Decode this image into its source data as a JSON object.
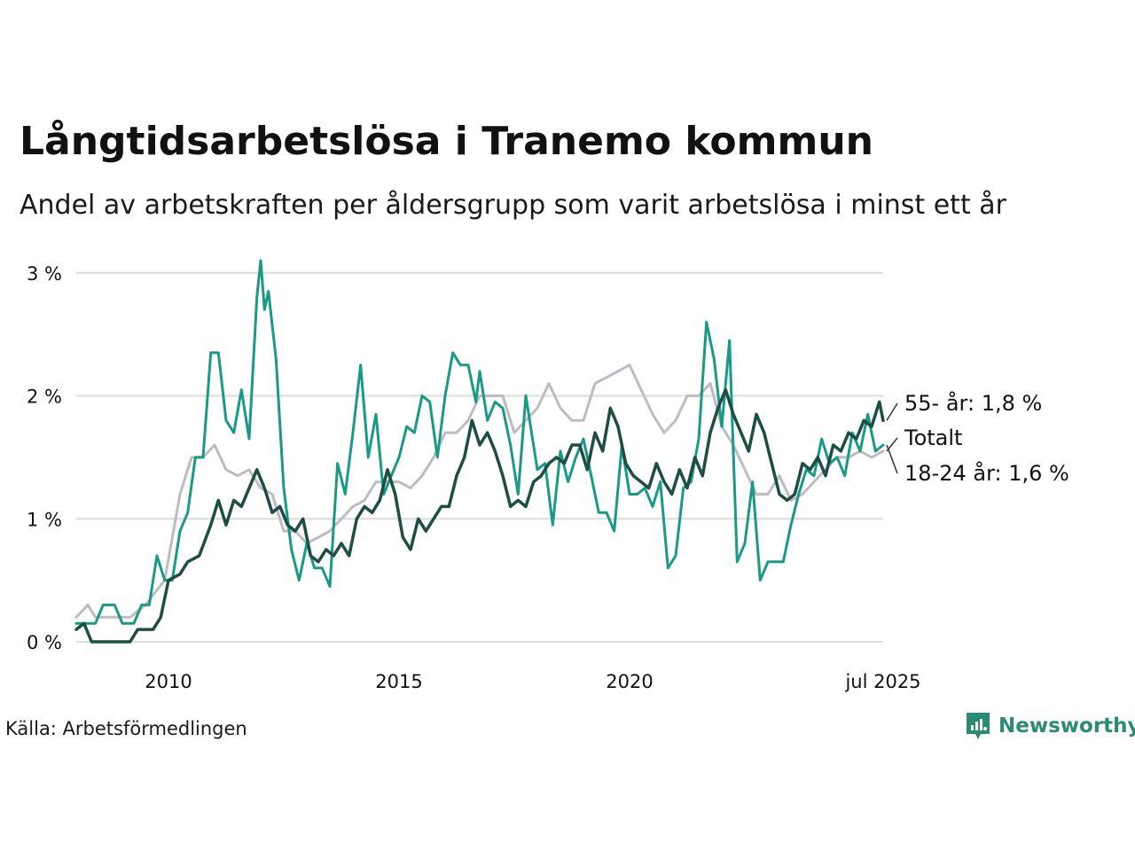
{
  "title": "Långtidsarbetslösa i Tranemo kommun",
  "subtitle": "Andel av arbetskraften per åldersgrupp som varit arbetslösa i minst ett år",
  "source": "Källa: Arbetsförmedlingen",
  "brand": {
    "name": "Newsworthy",
    "icon": "newsworthy-logo-icon",
    "color": "#2a8a72"
  },
  "chart_data": {
    "type": "line",
    "x_range": [
      "2008-01",
      "2025-07"
    ],
    "ylim": [
      0,
      3.2
    ],
    "y_ticks": [
      {
        "value": 0,
        "label": "0 %"
      },
      {
        "value": 1,
        "label": "1 %"
      },
      {
        "value": 2,
        "label": "2 %"
      },
      {
        "value": 3,
        "label": "3 %"
      }
    ],
    "x_ticks": [
      {
        "date": "2010-01",
        "label": "2010"
      },
      {
        "date": "2015-01",
        "label": "2015"
      },
      {
        "date": "2020-01",
        "label": "2020"
      },
      {
        "date": "2025-07",
        "label": "jul 2025"
      }
    ],
    "grid": true,
    "end_labels": [
      {
        "series": "55-",
        "text": "55- år: 1,8 %"
      },
      {
        "series": "Totalt",
        "text": "Totalt"
      },
      {
        "series": "18-24",
        "text": "18-24 år: 1,6 %"
      }
    ],
    "series": [
      {
        "name": "Totalt",
        "color": "#bdbcc4",
        "width": 3,
        "points": [
          [
            "2008-01",
            0.2
          ],
          [
            "2008-04",
            0.3
          ],
          [
            "2008-06",
            0.2
          ],
          [
            "2009-03",
            0.2
          ],
          [
            "2009-07",
            0.3
          ],
          [
            "2009-12",
            0.5
          ],
          [
            "2010-04",
            1.2
          ],
          [
            "2010-07",
            1.5
          ],
          [
            "2010-10",
            1.5
          ],
          [
            "2011-01",
            1.6
          ],
          [
            "2011-04",
            1.4
          ],
          [
            "2011-07",
            1.35
          ],
          [
            "2011-10",
            1.4
          ],
          [
            "2012-01",
            1.25
          ],
          [
            "2012-04",
            1.2
          ],
          [
            "2012-07",
            0.9
          ],
          [
            "2012-10",
            0.9
          ],
          [
            "2013-01",
            0.8
          ],
          [
            "2013-04",
            0.85
          ],
          [
            "2013-07",
            0.9
          ],
          [
            "2013-10",
            1.0
          ],
          [
            "2014-01",
            1.1
          ],
          [
            "2014-04",
            1.15
          ],
          [
            "2014-07",
            1.3
          ],
          [
            "2014-10",
            1.3
          ],
          [
            "2015-01",
            1.3
          ],
          [
            "2015-04",
            1.25
          ],
          [
            "2015-07",
            1.35
          ],
          [
            "2015-10",
            1.5
          ],
          [
            "2016-01",
            1.7
          ],
          [
            "2016-04",
            1.7
          ],
          [
            "2016-07",
            1.8
          ],
          [
            "2016-10",
            2.0
          ],
          [
            "2017-01",
            2.0
          ],
          [
            "2017-04",
            2.0
          ],
          [
            "2017-07",
            1.7
          ],
          [
            "2017-10",
            1.8
          ],
          [
            "2018-01",
            1.9
          ],
          [
            "2018-04",
            2.1
          ],
          [
            "2018-07",
            1.9
          ],
          [
            "2018-10",
            1.8
          ],
          [
            "2019-01",
            1.8
          ],
          [
            "2019-04",
            2.1
          ],
          [
            "2019-07",
            2.15
          ],
          [
            "2019-10",
            2.2
          ],
          [
            "2020-01",
            2.25
          ],
          [
            "2020-04",
            2.05
          ],
          [
            "2020-07",
            1.85
          ],
          [
            "2020-10",
            1.7
          ],
          [
            "2021-01",
            1.8
          ],
          [
            "2021-04",
            2.0
          ],
          [
            "2021-07",
            2.0
          ],
          [
            "2021-10",
            2.1
          ],
          [
            "2022-01",
            1.75
          ],
          [
            "2022-04",
            1.6
          ],
          [
            "2022-07",
            1.4
          ],
          [
            "2022-10",
            1.2
          ],
          [
            "2023-01",
            1.2
          ],
          [
            "2023-04",
            1.35
          ],
          [
            "2023-07",
            1.15
          ],
          [
            "2023-10",
            1.2
          ],
          [
            "2024-01",
            1.3
          ],
          [
            "2024-04",
            1.4
          ],
          [
            "2024-07",
            1.5
          ],
          [
            "2024-10",
            1.5
          ],
          [
            "2025-01",
            1.55
          ],
          [
            "2025-04",
            1.5
          ],
          [
            "2025-07",
            1.55
          ]
        ]
      },
      {
        "name": "18-24",
        "color": "#1a9a85",
        "width": 3,
        "points": [
          [
            "2008-01",
            0.15
          ],
          [
            "2008-03",
            0.15
          ],
          [
            "2008-06",
            0.15
          ],
          [
            "2008-08",
            0.3
          ],
          [
            "2008-11",
            0.3
          ],
          [
            "2009-01",
            0.15
          ],
          [
            "2009-04",
            0.15
          ],
          [
            "2009-06",
            0.3
          ],
          [
            "2009-08",
            0.3
          ],
          [
            "2009-10",
            0.7
          ],
          [
            "2009-12",
            0.5
          ],
          [
            "2010-02",
            0.5
          ],
          [
            "2010-04",
            0.9
          ],
          [
            "2010-06",
            1.05
          ],
          [
            "2010-08",
            1.5
          ],
          [
            "2010-10",
            1.5
          ],
          [
            "2010-12",
            2.35
          ],
          [
            "2011-02",
            2.35
          ],
          [
            "2011-04",
            1.8
          ],
          [
            "2011-06",
            1.7
          ],
          [
            "2011-08",
            2.05
          ],
          [
            "2011-10",
            1.65
          ],
          [
            "2011-12",
            2.8
          ],
          [
            "2012-01",
            3.1
          ],
          [
            "2012-02",
            2.7
          ],
          [
            "2012-03",
            2.85
          ],
          [
            "2012-05",
            2.3
          ],
          [
            "2012-07",
            1.25
          ],
          [
            "2012-09",
            0.75
          ],
          [
            "2012-11",
            0.5
          ],
          [
            "2013-01",
            0.8
          ],
          [
            "2013-03",
            0.6
          ],
          [
            "2013-05",
            0.6
          ],
          [
            "2013-07",
            0.45
          ],
          [
            "2013-09",
            1.45
          ],
          [
            "2013-11",
            1.2
          ],
          [
            "2014-01",
            1.7
          ],
          [
            "2014-03",
            2.25
          ],
          [
            "2014-05",
            1.5
          ],
          [
            "2014-07",
            1.85
          ],
          [
            "2014-09",
            1.2
          ],
          [
            "2014-11",
            1.35
          ],
          [
            "2015-01",
            1.5
          ],
          [
            "2015-03",
            1.75
          ],
          [
            "2015-05",
            1.7
          ],
          [
            "2015-07",
            2.0
          ],
          [
            "2015-09",
            1.95
          ],
          [
            "2015-11",
            1.5
          ],
          [
            "2016-01",
            2.0
          ],
          [
            "2016-03",
            2.35
          ],
          [
            "2016-05",
            2.25
          ],
          [
            "2016-07",
            2.25
          ],
          [
            "2016-09",
            1.95
          ],
          [
            "2016-10",
            2.2
          ],
          [
            "2016-12",
            1.8
          ],
          [
            "2017-02",
            1.95
          ],
          [
            "2017-04",
            1.9
          ],
          [
            "2017-06",
            1.6
          ],
          [
            "2017-08",
            1.2
          ],
          [
            "2017-10",
            2.0
          ],
          [
            "2018-01",
            1.4
          ],
          [
            "2018-03",
            1.45
          ],
          [
            "2018-05",
            0.95
          ],
          [
            "2018-07",
            1.55
          ],
          [
            "2018-09",
            1.3
          ],
          [
            "2018-11",
            1.5
          ],
          [
            "2019-01",
            1.65
          ],
          [
            "2019-03",
            1.35
          ],
          [
            "2019-05",
            1.05
          ],
          [
            "2019-07",
            1.05
          ],
          [
            "2019-09",
            0.9
          ],
          [
            "2019-11",
            1.6
          ],
          [
            "2020-01",
            1.2
          ],
          [
            "2020-03",
            1.2
          ],
          [
            "2020-05",
            1.25
          ],
          [
            "2020-07",
            1.1
          ],
          [
            "2020-09",
            1.3
          ],
          [
            "2020-11",
            0.6
          ],
          [
            "2021-01",
            0.7
          ],
          [
            "2021-03",
            1.25
          ],
          [
            "2021-05",
            1.3
          ],
          [
            "2021-07",
            1.65
          ],
          [
            "2021-09",
            2.6
          ],
          [
            "2021-11",
            2.3
          ],
          [
            "2022-01",
            1.75
          ],
          [
            "2022-03",
            2.45
          ],
          [
            "2022-05",
            0.65
          ],
          [
            "2022-07",
            0.8
          ],
          [
            "2022-09",
            1.3
          ],
          [
            "2022-11",
            0.5
          ],
          [
            "2023-01",
            0.65
          ],
          [
            "2023-03",
            0.65
          ],
          [
            "2023-05",
            0.65
          ],
          [
            "2023-07",
            0.95
          ],
          [
            "2023-09",
            1.2
          ],
          [
            "2023-11",
            1.4
          ],
          [
            "2024-01",
            1.35
          ],
          [
            "2024-03",
            1.65
          ],
          [
            "2024-05",
            1.45
          ],
          [
            "2024-07",
            1.5
          ],
          [
            "2024-09",
            1.35
          ],
          [
            "2024-11",
            1.7
          ],
          [
            "2025-01",
            1.55
          ],
          [
            "2025-03",
            1.85
          ],
          [
            "2025-05",
            1.55
          ],
          [
            "2025-07",
            1.6
          ]
        ]
      },
      {
        "name": "55-",
        "color": "#1e4d44",
        "width": 3.5,
        "points": [
          [
            "2008-01",
            0.1
          ],
          [
            "2008-03",
            0.15
          ],
          [
            "2008-05",
            0.0
          ],
          [
            "2008-09",
            0.0
          ],
          [
            "2009-03",
            0.0
          ],
          [
            "2009-05",
            0.1
          ],
          [
            "2009-09",
            0.1
          ],
          [
            "2009-11",
            0.2
          ],
          [
            "2010-01",
            0.5
          ],
          [
            "2010-04",
            0.55
          ],
          [
            "2010-06",
            0.65
          ],
          [
            "2010-09",
            0.7
          ],
          [
            "2010-12",
            0.95
          ],
          [
            "2011-02",
            1.15
          ],
          [
            "2011-04",
            0.95
          ],
          [
            "2011-06",
            1.15
          ],
          [
            "2011-08",
            1.1
          ],
          [
            "2011-10",
            1.25
          ],
          [
            "2011-12",
            1.4
          ],
          [
            "2012-02",
            1.25
          ],
          [
            "2012-04",
            1.05
          ],
          [
            "2012-06",
            1.1
          ],
          [
            "2012-08",
            0.95
          ],
          [
            "2012-10",
            0.9
          ],
          [
            "2012-12",
            1.0
          ],
          [
            "2013-02",
            0.7
          ],
          [
            "2013-04",
            0.65
          ],
          [
            "2013-06",
            0.75
          ],
          [
            "2013-08",
            0.7
          ],
          [
            "2013-10",
            0.8
          ],
          [
            "2013-12",
            0.7
          ],
          [
            "2014-02",
            1.0
          ],
          [
            "2014-04",
            1.1
          ],
          [
            "2014-06",
            1.05
          ],
          [
            "2014-08",
            1.15
          ],
          [
            "2014-10",
            1.4
          ],
          [
            "2014-12",
            1.2
          ],
          [
            "2015-02",
            0.85
          ],
          [
            "2015-04",
            0.75
          ],
          [
            "2015-06",
            1.0
          ],
          [
            "2015-08",
            0.9
          ],
          [
            "2015-10",
            1.0
          ],
          [
            "2015-12",
            1.1
          ],
          [
            "2016-02",
            1.1
          ],
          [
            "2016-04",
            1.35
          ],
          [
            "2016-06",
            1.5
          ],
          [
            "2016-08",
            1.8
          ],
          [
            "2016-10",
            1.6
          ],
          [
            "2016-12",
            1.7
          ],
          [
            "2017-02",
            1.55
          ],
          [
            "2017-04",
            1.35
          ],
          [
            "2017-06",
            1.1
          ],
          [
            "2017-08",
            1.15
          ],
          [
            "2017-10",
            1.1
          ],
          [
            "2017-12",
            1.3
          ],
          [
            "2018-02",
            1.35
          ],
          [
            "2018-04",
            1.45
          ],
          [
            "2018-06",
            1.5
          ],
          [
            "2018-08",
            1.45
          ],
          [
            "2018-10",
            1.6
          ],
          [
            "2018-12",
            1.6
          ],
          [
            "2019-02",
            1.4
          ],
          [
            "2019-04",
            1.7
          ],
          [
            "2019-06",
            1.55
          ],
          [
            "2019-08",
            1.9
          ],
          [
            "2019-10",
            1.75
          ],
          [
            "2019-12",
            1.45
          ],
          [
            "2020-02",
            1.35
          ],
          [
            "2020-04",
            1.3
          ],
          [
            "2020-06",
            1.25
          ],
          [
            "2020-08",
            1.45
          ],
          [
            "2020-10",
            1.3
          ],
          [
            "2020-12",
            1.2
          ],
          [
            "2021-02",
            1.4
          ],
          [
            "2021-04",
            1.25
          ],
          [
            "2021-06",
            1.5
          ],
          [
            "2021-08",
            1.35
          ],
          [
            "2021-10",
            1.7
          ],
          [
            "2021-12",
            1.9
          ],
          [
            "2022-02",
            2.05
          ],
          [
            "2022-04",
            1.85
          ],
          [
            "2022-06",
            1.7
          ],
          [
            "2022-08",
            1.55
          ],
          [
            "2022-10",
            1.85
          ],
          [
            "2022-12",
            1.7
          ],
          [
            "2023-02",
            1.45
          ],
          [
            "2023-04",
            1.2
          ],
          [
            "2023-06",
            1.15
          ],
          [
            "2023-08",
            1.2
          ],
          [
            "2023-10",
            1.45
          ],
          [
            "2023-12",
            1.4
          ],
          [
            "2024-02",
            1.5
          ],
          [
            "2024-04",
            1.35
          ],
          [
            "2024-06",
            1.6
          ],
          [
            "2024-08",
            1.55
          ],
          [
            "2024-10",
            1.7
          ],
          [
            "2024-12",
            1.65
          ],
          [
            "2025-02",
            1.8
          ],
          [
            "2025-04",
            1.75
          ],
          [
            "2025-06",
            1.95
          ],
          [
            "2025-07",
            1.8
          ]
        ]
      }
    ]
  }
}
